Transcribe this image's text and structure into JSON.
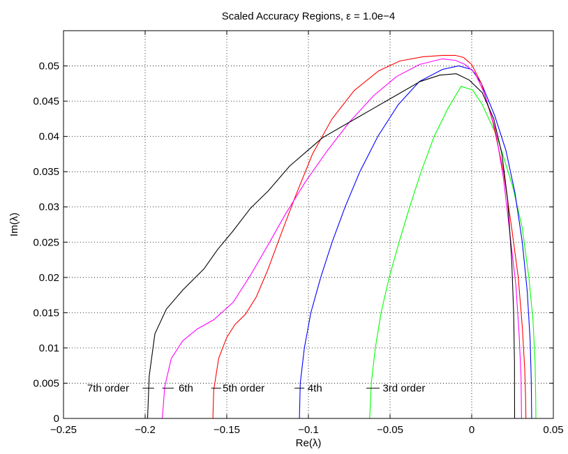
{
  "chart_data": {
    "type": "line",
    "title": "Scaled Accuracy Regions, ε = 1.0e−4",
    "xlabel": "Re(λ)",
    "ylabel": "Im(λ)",
    "xlim": [
      -0.25,
      0.05
    ],
    "ylim": [
      0,
      0.055
    ],
    "grid": true,
    "x_ticks": [
      -0.25,
      -0.2,
      -0.15,
      -0.1,
      -0.05,
      0,
      0.05
    ],
    "x_tick_labels": [
      "−0.25",
      "−0.2",
      "−0.15",
      "−0.1",
      "−0.05",
      "0",
      "0.05"
    ],
    "y_ticks": [
      0,
      0.005,
      0.01,
      0.015,
      0.02,
      0.025,
      0.03,
      0.035,
      0.04,
      0.045,
      0.05
    ],
    "y_tick_labels": [
      "0",
      "0.005",
      "0.01",
      "0.015",
      "0.02",
      "0.025",
      "0.03",
      "0.035",
      "0.04",
      "0.045",
      "0.05"
    ],
    "series": [
      {
        "color": "#00ff00",
        "points": [
          [
            -0.0625,
            0
          ],
          [
            -0.0615,
            0.005
          ],
          [
            -0.059,
            0.01
          ],
          [
            -0.0555,
            0.015
          ],
          [
            -0.0505,
            0.02
          ],
          [
            -0.0445,
            0.025
          ],
          [
            -0.038,
            0.03
          ],
          [
            -0.031,
            0.035
          ],
          [
            -0.023,
            0.04
          ],
          [
            -0.0145,
            0.044
          ],
          [
            -0.0065,
            0.0471
          ],
          [
            0.0005,
            0.0466
          ],
          [
            0.0065,
            0.0445
          ],
          [
            0.0155,
            0.04
          ],
          [
            0.025,
            0.033
          ],
          [
            0.031,
            0.027
          ],
          [
            0.035,
            0.02
          ],
          [
            0.0375,
            0.014
          ],
          [
            0.0388,
            0.008
          ],
          [
            0.0392,
            0.003
          ],
          [
            0.0393,
            0
          ]
        ]
      },
      {
        "color": "#0000ff",
        "points": [
          [
            -0.1055,
            0
          ],
          [
            -0.105,
            0.005
          ],
          [
            -0.1025,
            0.01
          ],
          [
            -0.0985,
            0.015
          ],
          [
            -0.0925,
            0.02
          ],
          [
            -0.0855,
            0.025
          ],
          [
            -0.0775,
            0.03
          ],
          [
            -0.0685,
            0.035
          ],
          [
            -0.0575,
            0.04
          ],
          [
            -0.045,
            0.0445
          ],
          [
            -0.032,
            0.0478
          ],
          [
            -0.018,
            0.0495
          ],
          [
            -0.008,
            0.05
          ],
          [
            0.0,
            0.0495
          ],
          [
            0.006,
            0.0475
          ],
          [
            0.014,
            0.043
          ],
          [
            0.021,
            0.038
          ],
          [
            0.0265,
            0.032
          ],
          [
            0.031,
            0.025
          ],
          [
            0.034,
            0.018
          ],
          [
            0.0358,
            0.011
          ],
          [
            0.0365,
            0.005
          ],
          [
            0.0367,
            0
          ]
        ]
      },
      {
        "color": "#ff0000",
        "points": [
          [
            -0.1585,
            0
          ],
          [
            -0.158,
            0.004
          ],
          [
            -0.155,
            0.0085
          ],
          [
            -0.15,
            0.0115
          ],
          [
            -0.145,
            0.0133
          ],
          [
            -0.1385,
            0.0148
          ],
          [
            -0.132,
            0.0172
          ],
          [
            -0.125,
            0.021
          ],
          [
            -0.117,
            0.026
          ],
          [
            -0.108,
            0.0315
          ],
          [
            -0.0975,
            0.0375
          ],
          [
            -0.0855,
            0.0425
          ],
          [
            -0.072,
            0.0465
          ],
          [
            -0.057,
            0.0493
          ],
          [
            -0.044,
            0.0507
          ],
          [
            -0.03,
            0.0513
          ],
          [
            -0.018,
            0.0515
          ],
          [
            -0.01,
            0.0515
          ],
          [
            -0.005,
            0.0512
          ],
          [
            0.0,
            0.0502
          ],
          [
            0.006,
            0.0475
          ],
          [
            0.013,
            0.042
          ],
          [
            0.0195,
            0.035
          ],
          [
            0.0245,
            0.027
          ],
          [
            0.0285,
            0.02
          ],
          [
            0.031,
            0.013
          ],
          [
            0.0325,
            0.007
          ],
          [
            0.033,
            0.003
          ],
          [
            0.0332,
            0
          ]
        ]
      },
      {
        "color": "#ff00ff",
        "points": [
          [
            -0.1895,
            0
          ],
          [
            -0.188,
            0.0045
          ],
          [
            -0.184,
            0.0085
          ],
          [
            -0.177,
            0.011
          ],
          [
            -0.168,
            0.0127
          ],
          [
            -0.158,
            0.014
          ],
          [
            -0.146,
            0.0165
          ],
          [
            -0.135,
            0.0205
          ],
          [
            -0.125,
            0.0245
          ],
          [
            -0.114,
            0.029
          ],
          [
            -0.102,
            0.0335
          ],
          [
            -0.089,
            0.0378
          ],
          [
            -0.075,
            0.042
          ],
          [
            -0.06,
            0.0458
          ],
          [
            -0.046,
            0.0485
          ],
          [
            -0.032,
            0.0502
          ],
          [
            -0.018,
            0.051
          ],
          [
            -0.01,
            0.0508
          ],
          [
            -0.004,
            0.0502
          ],
          [
            0.002,
            0.049
          ],
          [
            0.008,
            0.046
          ],
          [
            0.0145,
            0.041
          ],
          [
            0.0195,
            0.034
          ],
          [
            0.0235,
            0.026
          ],
          [
            0.027,
            0.019
          ],
          [
            0.029,
            0.012
          ],
          [
            0.0302,
            0.006
          ],
          [
            0.0305,
            0
          ]
        ]
      },
      {
        "color": "#000000",
        "points": [
          [
            -0.1985,
            0
          ],
          [
            -0.1975,
            0.006
          ],
          [
            -0.194,
            0.012
          ],
          [
            -0.187,
            0.0155
          ],
          [
            -0.177,
            0.0182
          ],
          [
            -0.164,
            0.0212
          ],
          [
            -0.1555,
            0.024
          ],
          [
            -0.1465,
            0.0265
          ],
          [
            -0.1355,
            0.0298
          ],
          [
            -0.1245,
            0.0323
          ],
          [
            -0.1115,
            0.0358
          ],
          [
            -0.1015,
            0.0378
          ],
          [
            -0.0915,
            0.0398
          ],
          [
            -0.0765,
            0.0418
          ],
          [
            -0.0615,
            0.0438
          ],
          [
            -0.0465,
            0.0458
          ],
          [
            -0.0315,
            0.0478
          ],
          [
            -0.0195,
            0.0487
          ],
          [
            -0.0095,
            0.0489
          ],
          [
            -0.0015,
            0.048
          ],
          [
            0.0065,
            0.0462
          ],
          [
            0.0135,
            0.0425
          ],
          [
            0.0185,
            0.0375
          ],
          [
            0.022,
            0.031
          ],
          [
            0.0245,
            0.0225
          ],
          [
            0.0257,
            0.015
          ],
          [
            0.0262,
            0.008
          ],
          [
            0.0263,
            0
          ]
        ]
      }
    ],
    "annotations": [
      {
        "text": "7th order",
        "x": -0.2355,
        "y": 0.0038,
        "dash_from": -0.2015,
        "dash_to": -0.1945
      },
      {
        "text": "6th",
        "x": -0.1795,
        "y": 0.0038,
        "dash_from": -0.1895,
        "dash_to": -0.1825
      },
      {
        "text": "5th order",
        "x": -0.1525,
        "y": 0.0038,
        "dash_from": -0.1595,
        "dash_to": -0.1535
      },
      {
        "text": "4th",
        "x": -0.1005,
        "y": 0.0038,
        "dash_from": -0.1085,
        "dash_to": -0.1025
      },
      {
        "text": "3rd order",
        "x": -0.0545,
        "y": 0.0038,
        "dash_from": -0.0645,
        "dash_to": -0.0565
      }
    ]
  }
}
